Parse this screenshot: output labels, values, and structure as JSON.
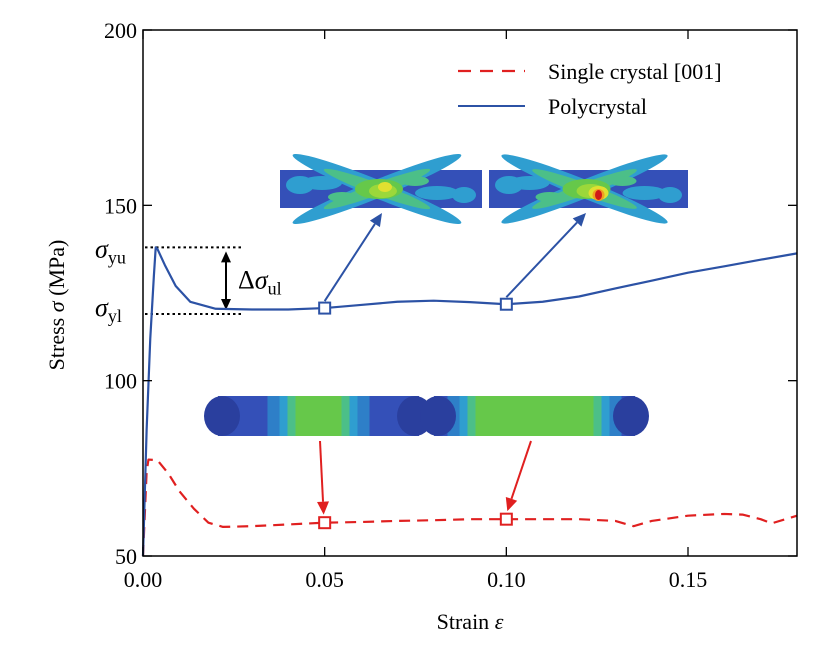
{
  "chart_data": {
    "type": "line",
    "xlabel": "Strain",
    "xlabel_symbol": "ε",
    "ylabel": "Stress",
    "ylabel_symbol": "σ",
    "ylabel_unit": "(MPa)",
    "xlim": [
      0.0,
      0.18
    ],
    "ylim": [
      50,
      200
    ],
    "x_ticks": [
      0.0,
      0.05,
      0.1,
      0.15
    ],
    "x_tick_labels": [
      "0.00",
      "0.05",
      "0.10",
      "0.15"
    ],
    "y_ticks": [
      50,
      100,
      150,
      200
    ],
    "y_tick_labels": [
      "50",
      "100",
      "150",
      "200"
    ],
    "grid": false,
    "legend_position": "top-right",
    "series": [
      {
        "name": "Single crystal [001]",
        "color": "#e02020",
        "style": "dashed",
        "points": [
          [
            0.0,
            50
          ],
          [
            0.0005,
            62
          ],
          [
            0.001,
            74
          ],
          [
            0.0015,
            77.5
          ],
          [
            0.004,
            77.3
          ],
          [
            0.007,
            73.5
          ],
          [
            0.01,
            68.5
          ],
          [
            0.014,
            63.5
          ],
          [
            0.018,
            59.5
          ],
          [
            0.022,
            58.3
          ],
          [
            0.03,
            58.5
          ],
          [
            0.04,
            59
          ],
          [
            0.05,
            59.5
          ],
          [
            0.06,
            59.7
          ],
          [
            0.07,
            60
          ],
          [
            0.08,
            60.2
          ],
          [
            0.09,
            60.5
          ],
          [
            0.1,
            60.5
          ],
          [
            0.11,
            60.5
          ],
          [
            0.12,
            60.5
          ],
          [
            0.13,
            60
          ],
          [
            0.135,
            58.5
          ],
          [
            0.14,
            60
          ],
          [
            0.15,
            61.5
          ],
          [
            0.16,
            62
          ],
          [
            0.165,
            61.8
          ],
          [
            0.17,
            60.5
          ],
          [
            0.173,
            59.3
          ],
          [
            0.18,
            61.5
          ]
        ]
      },
      {
        "name": "Polycrystal",
        "color": "#2c52a5",
        "style": "solid",
        "points": [
          [
            0.0,
            50
          ],
          [
            0.001,
            86
          ],
          [
            0.002,
            112
          ],
          [
            0.003,
            130
          ],
          [
            0.0035,
            138
          ],
          [
            0.004,
            137.5
          ],
          [
            0.006,
            133
          ],
          [
            0.009,
            127
          ],
          [
            0.013,
            122.5
          ],
          [
            0.02,
            120.5
          ],
          [
            0.03,
            120.3
          ],
          [
            0.04,
            120.3
          ],
          [
            0.05,
            120.7
          ],
          [
            0.06,
            121.6
          ],
          [
            0.07,
            122.5
          ],
          [
            0.08,
            122.8
          ],
          [
            0.09,
            122.4
          ],
          [
            0.1,
            121.8
          ],
          [
            0.11,
            122.5
          ],
          [
            0.12,
            124
          ],
          [
            0.13,
            126.3
          ],
          [
            0.14,
            128.5
          ],
          [
            0.15,
            130.8
          ],
          [
            0.16,
            132.6
          ],
          [
            0.17,
            134.5
          ],
          [
            0.18,
            136.3
          ]
        ]
      }
    ],
    "markers": [
      {
        "series": "Polycrystal",
        "x": 0.05,
        "y": 120.7
      },
      {
        "series": "Polycrystal",
        "x": 0.1,
        "y": 121.8
      },
      {
        "series": "Single crystal [001]",
        "x": 0.05,
        "y": 59.5
      },
      {
        "series": "Single crystal [001]",
        "x": 0.1,
        "y": 60.5
      }
    ],
    "annotations": {
      "sigma_yu": {
        "symbol": "σ",
        "subscript": "yu",
        "y": 138
      },
      "sigma_yl": {
        "symbol": "σ",
        "subscript": "yl",
        "y": 119
      },
      "delta_sigma_ul": {
        "prefix": "Δ",
        "symbol": "σ",
        "subscript": "ul"
      }
    },
    "insets": [
      {
        "series": "Polycrystal",
        "x": 0.05,
        "pattern": "polycrystal-x-band-low"
      },
      {
        "series": "Polycrystal",
        "x": 0.1,
        "pattern": "polycrystal-x-band-high"
      },
      {
        "series": "Single crystal [001]",
        "x": 0.05,
        "pattern": "single-crystal-narrow-band"
      },
      {
        "series": "Single crystal [001]",
        "x": 0.1,
        "pattern": "single-crystal-wide-band"
      }
    ],
    "inset_colors": {
      "background": "#3450b8",
      "low": "#2f9ed0",
      "mid": "#4cbf88",
      "green": "#66c84a",
      "bright": "#9bd83a",
      "yellow": "#e0e030",
      "orange": "#f0a020",
      "hot": "#d01818"
    }
  }
}
